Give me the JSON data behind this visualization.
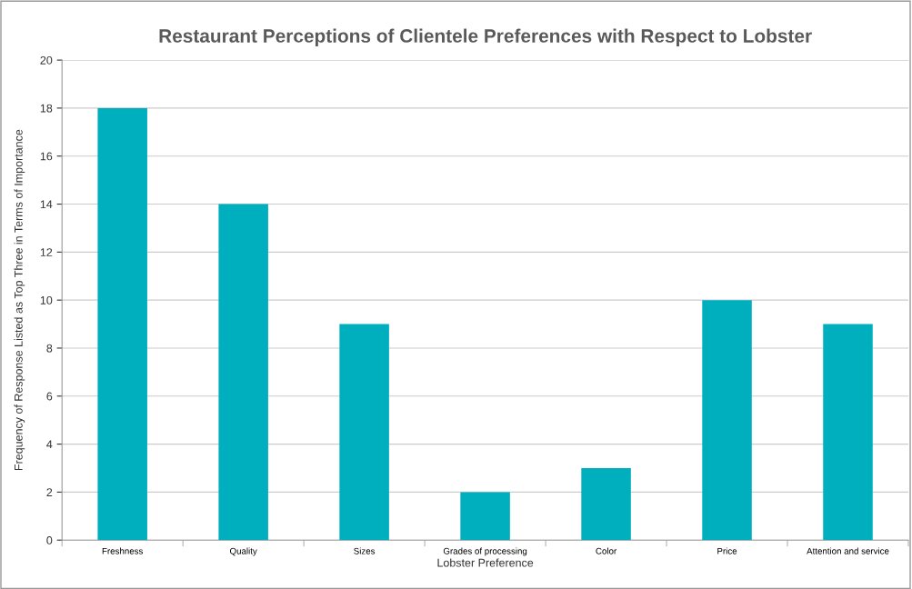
{
  "chart_data": {
    "type": "bar",
    "title": "Restaurant Perceptions of Clientele Preferences with Respect to Lobster",
    "xlabel": "Lobster Preference",
    "ylabel": "Frequency of Response Listed as Top Three in Terms of Importance",
    "categories": [
      "Freshness",
      "Quality",
      "Sizes",
      "Grades of processing",
      "Color",
      "Price",
      "Attention and service"
    ],
    "values": [
      18,
      14,
      9,
      2,
      3,
      10,
      9
    ],
    "color": "#00afbe",
    "ylim": [
      0,
      20
    ],
    "yticks": [
      0,
      2,
      4,
      6,
      8,
      10,
      12,
      14,
      16,
      18,
      20
    ],
    "grid": "y",
    "legend": false
  }
}
